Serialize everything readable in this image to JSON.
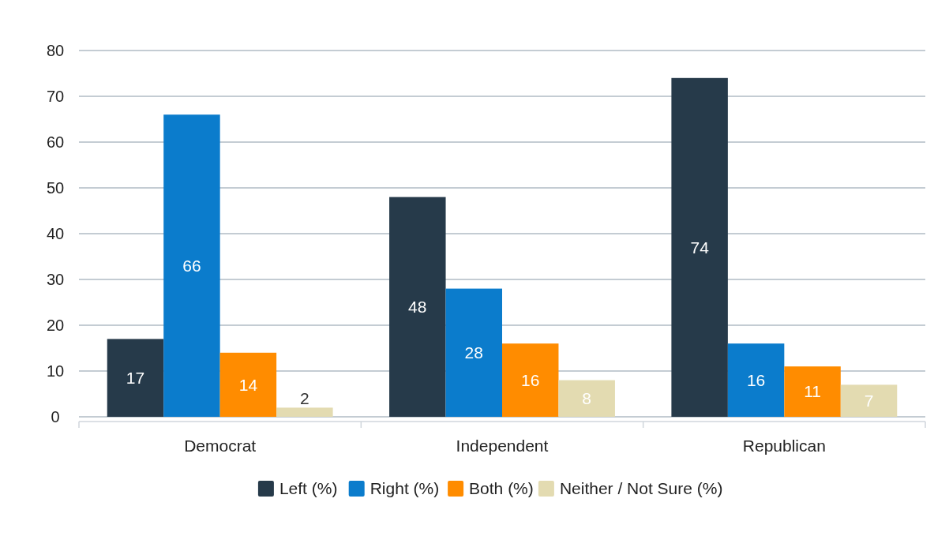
{
  "chart_data": {
    "type": "bar",
    "categories": [
      "Democrat",
      "Independent",
      "Republican"
    ],
    "series": [
      {
        "name": "Left (%)",
        "color": "#263a4a",
        "values": [
          17,
          48,
          74
        ]
      },
      {
        "name": "Right (%)",
        "color": "#0b7ccc",
        "values": [
          66,
          28,
          16
        ]
      },
      {
        "name": "Both (%)",
        "color": "#ff8c00",
        "values": [
          14,
          16,
          11
        ]
      },
      {
        "name": "Neither / Not Sure (%)",
        "color": "#e3dbb1",
        "values": [
          2,
          8,
          7
        ]
      }
    ],
    "ylim": [
      0,
      80
    ],
    "yticks": [
      0,
      10,
      20,
      30,
      40,
      50,
      60,
      70,
      80
    ],
    "grid": "y",
    "legend": "bottom",
    "data_labels": true
  }
}
